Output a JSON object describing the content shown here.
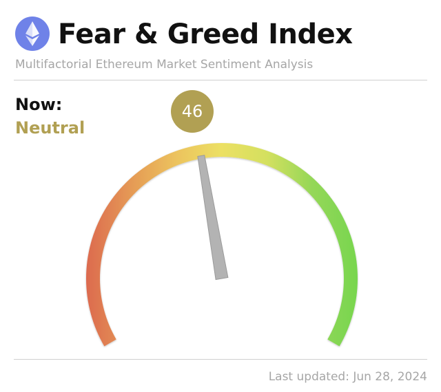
{
  "header": {
    "title": "Fear & Greed Index",
    "subtitle": "Multifactorial Ethereum Market Sentiment Analysis",
    "logo_icon": "ethereum-icon",
    "logo_color": "#6f82e8"
  },
  "sentiment": {
    "now_label": "Now:",
    "classification": "Neutral",
    "value": 46,
    "value_label": "46",
    "min": 0,
    "max": 100,
    "accent_color": "#b1a053"
  },
  "gauge": {
    "colors": [
      "#dc6a4f",
      "#e59a55",
      "#ecc35e",
      "#ece064",
      "#d4e05f",
      "#95d758",
      "#78d64f"
    ],
    "needle_color": "#b3b3b3"
  },
  "footer": {
    "last_updated": "Last updated: Jun 28, 2024"
  }
}
